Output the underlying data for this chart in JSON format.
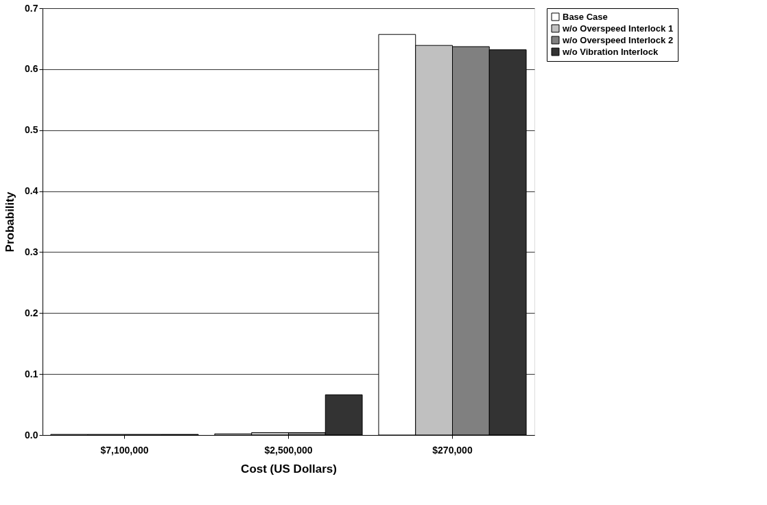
{
  "chart_data": {
    "type": "bar",
    "xlabel": "Cost (US Dollars)",
    "ylabel": "Probability",
    "categories": [
      "$7,100,000",
      "$2,500,000",
      "$270,000"
    ],
    "series": [
      {
        "name": "Base Case",
        "color": "#ffffff",
        "values": [
          0.001,
          0.002,
          0.657
        ]
      },
      {
        "name": "w/o Overspeed Interlock 1",
        "color": "#c0c0c0",
        "values": [
          0.001,
          0.004,
          0.639
        ]
      },
      {
        "name": "w/o Overspeed Interlock 2",
        "color": "#808080",
        "values": [
          0.001,
          0.004,
          0.637
        ]
      },
      {
        "name": "w/o Vibration Interlock",
        "color": "#333333",
        "values": [
          0.001,
          0.066,
          0.632
        ]
      }
    ],
    "ylim": [
      0,
      0.7
    ],
    "yticks": [
      {
        "value": 0,
        "label": "0.0"
      },
      0.1,
      0.2,
      0.3,
      0.4,
      0.5,
      0.6,
      0.7
    ],
    "grid": "y",
    "legend": "right"
  }
}
